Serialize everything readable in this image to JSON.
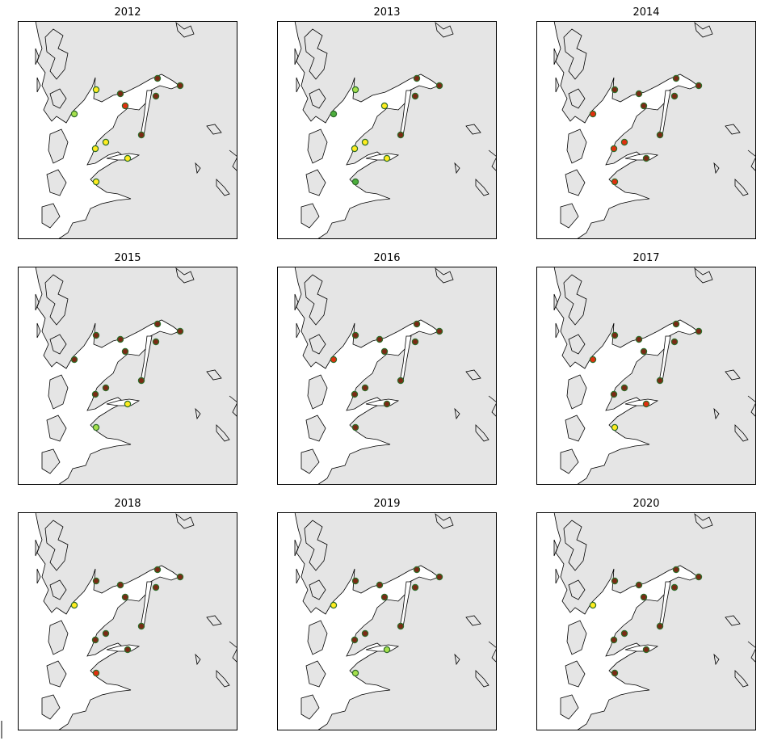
{
  "panels": [
    {
      "title": "2012",
      "stations": [
        "#ffec1f",
        "#7a2a14",
        "#7a2a14",
        "#7a2a14",
        "#7a2a14",
        "#e0300e",
        "#a6e04c",
        "#7a2a14",
        "#ffec1f",
        "#ffec1f",
        "#ffec1f",
        "#ffec1f"
      ]
    },
    {
      "title": "2013",
      "stations": [
        "#a6e04c",
        null,
        "#7a2a14",
        "#7a2a14",
        "#7a2a14",
        "#ffec1f",
        "#4caf3c",
        "#7a2a14",
        "#ffec1f",
        "#ffec1f",
        "#ffec1f",
        "#4caf3c"
      ]
    },
    {
      "title": "2014",
      "stations": [
        "#7a2a14",
        "#7a2a14",
        "#7a2a14",
        "#7a2a14",
        "#7a2a14",
        "#7a2a14",
        "#e0300e",
        "#7a2a14",
        "#e0300e",
        "#e0300e",
        "#7a2a14",
        "#e0300e"
      ]
    },
    {
      "title": "2015",
      "stations": [
        "#7a2a14",
        "#7a2a14",
        "#7a2a14",
        "#7a2a14",
        "#7a2a14",
        "#7a2a14",
        "#7a2a14",
        "#7a2a14",
        "#7a2a14",
        "#7a2a14",
        "#ffec1f",
        "#a6e04c"
      ]
    },
    {
      "title": "2016",
      "stations": [
        "#7a2a14",
        "#7a2a14",
        "#7a2a14",
        "#7a2a14",
        "#7a2a14",
        "#7a2a14",
        "#e0300e",
        "#7a2a14",
        "#7a2a14",
        "#7a2a14",
        "#7a2a14",
        "#7a2a14"
      ]
    },
    {
      "title": "2017",
      "stations": [
        "#7a2a14",
        "#7a2a14",
        "#7a2a14",
        "#7a2a14",
        "#7a2a14",
        "#7a2a14",
        "#e0300e",
        "#7a2a14",
        "#7a2a14",
        "#7a2a14",
        "#e0300e",
        "#ffec1f"
      ]
    },
    {
      "title": "2018",
      "stations": [
        "#7a2a14",
        "#7a2a14",
        "#7a2a14",
        "#7a2a14",
        "#7a2a14",
        "#7a2a14",
        "#ffec1f",
        "#7a2a14",
        "#7a2a14",
        "#7a2a14",
        "#7a2a14",
        "#e0300e"
      ]
    },
    {
      "title": "2019",
      "stations": [
        "#7a2a14",
        "#7a2a14",
        "#7a2a14",
        "#7a2a14",
        "#7a2a14",
        "#7a2a14",
        "#ffec1f",
        "#7a2a14",
        "#7a2a14",
        "#7a2a14",
        "#a6e04c",
        "#a6e04c"
      ]
    },
    {
      "title": "2020",
      "stations": [
        "#7a2a14",
        "#7a2a14",
        "#7a2a14",
        "#7a2a14",
        "#7a2a14",
        "#7a2a14",
        "#ffec1f",
        "#7a2a14",
        "#7a2a14",
        "#7a2a14",
        "#7a2a14",
        "#7a2a14"
      ]
    }
  ]
}
